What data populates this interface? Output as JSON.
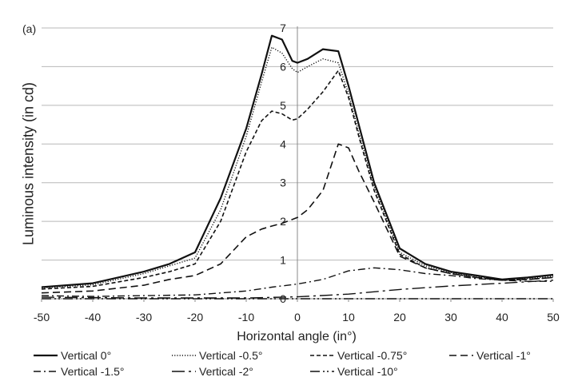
{
  "chart_data": {
    "type": "line",
    "panel_label": "(a)",
    "xlabel": "Horizontal angle (in°)",
    "ylabel": "Luminous intensity (in cd)",
    "xlim": [
      -50,
      50
    ],
    "ylim": [
      0,
      7
    ],
    "xticks": [
      "-50",
      "-40",
      "-30",
      "-20",
      "-10",
      "0",
      "10",
      "20",
      "30",
      "40",
      "50"
    ],
    "yticks": [
      "0",
      "1",
      "2",
      "3",
      "4",
      "5",
      "6",
      "7"
    ],
    "grid": "horizontal",
    "legend_position": "bottom",
    "series": [
      {
        "name": "Vertical 0°",
        "dash": "solid",
        "width": 2.2,
        "x": [
          -50,
          -40,
          -30,
          -25,
          -20,
          -15,
          -10,
          -7,
          -5,
          -3,
          -1,
          0,
          2,
          5,
          8,
          10,
          12,
          15,
          20,
          25,
          30,
          35,
          40,
          45,
          50
        ],
        "y": [
          0.3,
          0.4,
          0.7,
          0.9,
          1.2,
          2.6,
          4.4,
          5.8,
          6.8,
          6.7,
          6.15,
          6.1,
          6.2,
          6.45,
          6.4,
          5.5,
          4.5,
          3.0,
          1.3,
          0.9,
          0.7,
          0.6,
          0.5,
          0.55,
          0.62
        ]
      },
      {
        "name": "Vertical -0.5°",
        "dash": "dotted",
        "width": 1.4,
        "x": [
          -50,
          -40,
          -30,
          -25,
          -20,
          -15,
          -10,
          -7,
          -5,
          -3,
          -1,
          0,
          2,
          5,
          8,
          10,
          12,
          15,
          20,
          25,
          30,
          35,
          40,
          45,
          50
        ],
        "y": [
          0.28,
          0.36,
          0.65,
          0.85,
          1.05,
          2.3,
          4.2,
          5.6,
          6.5,
          6.35,
          5.95,
          5.85,
          6.0,
          6.2,
          6.1,
          5.3,
          4.3,
          2.9,
          1.2,
          0.85,
          0.68,
          0.58,
          0.48,
          0.52,
          0.58
        ]
      },
      {
        "name": "Vertical -0.75°",
        "dash": "short-dash",
        "width": 1.6,
        "x": [
          -50,
          -40,
          -30,
          -25,
          -20,
          -15,
          -10,
          -7,
          -5,
          -3,
          -1,
          0,
          2,
          5,
          8,
          10,
          12,
          15,
          20,
          25,
          30,
          35,
          40,
          45,
          50
        ],
        "y": [
          0.25,
          0.32,
          0.55,
          0.7,
          0.9,
          2.0,
          3.8,
          4.6,
          4.85,
          4.78,
          4.62,
          4.65,
          4.9,
          5.35,
          5.9,
          5.2,
          4.2,
          2.8,
          1.15,
          0.8,
          0.65,
          0.55,
          0.48,
          0.5,
          0.55
        ]
      },
      {
        "name": "Vertical -1°",
        "dash": "long-dash",
        "width": 1.6,
        "x": [
          -50,
          -40,
          -30,
          -25,
          -20,
          -15,
          -10,
          -7,
          -5,
          -3,
          -1,
          0,
          2,
          5,
          8,
          10,
          12,
          15,
          20,
          25,
          30,
          35,
          40,
          45,
          50
        ],
        "y": [
          0.15,
          0.2,
          0.35,
          0.5,
          0.6,
          0.9,
          1.6,
          1.8,
          1.88,
          1.95,
          2.05,
          2.1,
          2.3,
          2.8,
          4.0,
          3.9,
          3.3,
          2.5,
          1.1,
          0.8,
          0.65,
          0.55,
          0.48,
          0.5,
          0.55
        ]
      },
      {
        "name": "Vertical -1.5°",
        "dash": "dash-dot",
        "width": 1.4,
        "x": [
          -50,
          -40,
          -30,
          -20,
          -10,
          -5,
          0,
          5,
          10,
          15,
          20,
          25,
          30,
          35,
          40,
          45,
          50
        ],
        "y": [
          0.08,
          0.06,
          0.08,
          0.1,
          0.2,
          0.3,
          0.38,
          0.5,
          0.72,
          0.8,
          0.75,
          0.65,
          0.6,
          0.52,
          0.48,
          0.45,
          0.45
        ]
      },
      {
        "name": "Vertical -2°",
        "dash": "long-dash-dot",
        "width": 1.4,
        "x": [
          -50,
          -40,
          -30,
          -20,
          -10,
          0,
          10,
          20,
          30,
          40,
          50
        ],
        "y": [
          0.04,
          0.03,
          0.02,
          0.02,
          0.02,
          0.05,
          0.12,
          0.24,
          0.33,
          0.4,
          0.48
        ]
      },
      {
        "name": "Vertical -10°",
        "dash": "dash-dot-dot",
        "width": 1.4,
        "x": [
          -50,
          -30,
          -10,
          0,
          10,
          30,
          50
        ],
        "y": [
          0.0,
          0.0,
          0.0,
          0.0,
          0.0,
          0.0,
          0.0
        ]
      }
    ]
  }
}
